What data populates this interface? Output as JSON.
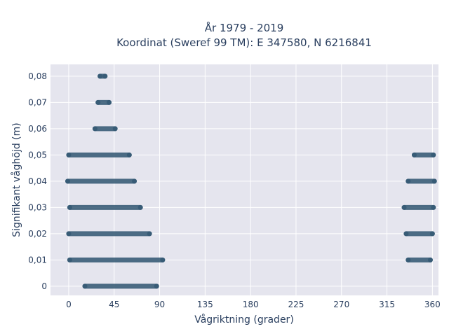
{
  "chart_data": {
    "type": "scatter",
    "title": "År 1979 - 2019",
    "subtitle": "Koordinat (Sweref 99 TM): E 347580, N 6216841",
    "xlabel": "Vågriktning (grader)",
    "ylabel": "Signifikant våghöjd (m)",
    "xlim": [
      -18,
      366
    ],
    "ylim": [
      -0.0035,
      0.0845
    ],
    "x_ticks": [
      0,
      45,
      90,
      135,
      180,
      225,
      270,
      315,
      360
    ],
    "x_tick_labels": [
      "0",
      "45",
      "90",
      "135",
      "180",
      "225",
      "270",
      "315",
      "360"
    ],
    "y_ticks": [
      0,
      0.01,
      0.02,
      0.03,
      0.04,
      0.05,
      0.06,
      0.07,
      0.08
    ],
    "y_tick_labels": [
      "0",
      "0,01",
      "0,02",
      "0,03",
      "0,04",
      "0,05",
      "0,06",
      "0,07",
      "0,08"
    ],
    "grid": true,
    "marker_color": "#2f5570",
    "plot_background": "#e5e5ee",
    "series": [
      {
        "segments": [
          {
            "y": 0.0,
            "x_from": 16,
            "x_to": 87
          },
          {
            "y": 0.01,
            "x_from": 1,
            "x_to": 93
          },
          {
            "y": 0.01,
            "x_from": 336,
            "x_to": 358
          },
          {
            "y": 0.02,
            "x_from": 0,
            "x_to": 80
          },
          {
            "y": 0.02,
            "x_from": 334,
            "x_to": 360
          },
          {
            "y": 0.03,
            "x_from": 1,
            "x_to": 71
          },
          {
            "y": 0.03,
            "x_from": 332,
            "x_to": 361
          },
          {
            "y": 0.04,
            "x_from": -1,
            "x_to": 65
          },
          {
            "y": 0.04,
            "x_from": 336,
            "x_to": 362
          },
          {
            "y": 0.05,
            "x_from": 0,
            "x_to": 60
          },
          {
            "y": 0.05,
            "x_from": 342,
            "x_to": 361
          },
          {
            "y": 0.06,
            "x_from": 26,
            "x_to": 46
          },
          {
            "y": 0.07,
            "x_from": 29,
            "x_to": 40
          },
          {
            "y": 0.08,
            "x_from": 31,
            "x_to": 36
          }
        ]
      }
    ]
  }
}
